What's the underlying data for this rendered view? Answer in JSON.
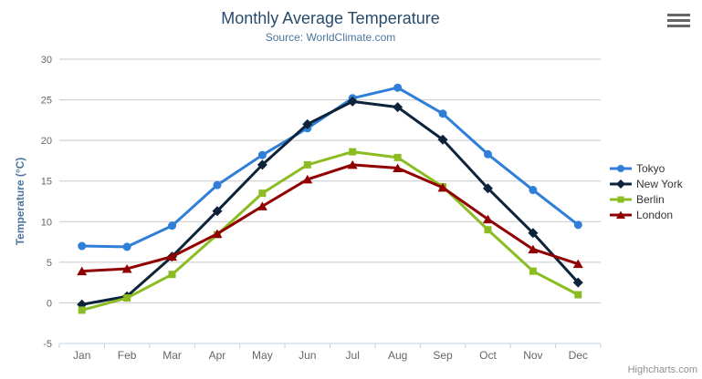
{
  "chart_data": {
    "type": "line",
    "title": "Monthly Average Temperature",
    "subtitle": "Source: WorldClimate.com",
    "credits": "Highcharts.com",
    "categories": [
      "Jan",
      "Feb",
      "Mar",
      "Apr",
      "May",
      "Jun",
      "Jul",
      "Aug",
      "Sep",
      "Oct",
      "Nov",
      "Dec"
    ],
    "xlabel": "",
    "ylabel": "Temperature (°C)",
    "ylim": [
      -5,
      30
    ],
    "yticks": [
      -5,
      0,
      5,
      10,
      15,
      20,
      25,
      30
    ],
    "grid": true,
    "legend_position": "right",
    "series": [
      {
        "name": "Tokyo",
        "color": "#2f7ed8",
        "marker": "circle",
        "values": [
          7.0,
          6.9,
          9.5,
          14.5,
          18.2,
          21.5,
          25.2,
          26.5,
          23.3,
          18.3,
          13.9,
          9.6
        ]
      },
      {
        "name": "New York",
        "color": "#0d233a",
        "marker": "diamond",
        "values": [
          -0.2,
          0.8,
          5.7,
          11.3,
          17.0,
          22.0,
          24.8,
          24.1,
          20.1,
          14.1,
          8.6,
          2.5
        ]
      },
      {
        "name": "Berlin",
        "color": "#8bbc21",
        "marker": "square",
        "values": [
          -0.9,
          0.6,
          3.5,
          8.4,
          13.5,
          17.0,
          18.6,
          17.9,
          14.3,
          9.0,
          3.9,
          1.0
        ]
      },
      {
        "name": "London",
        "color": "#910000",
        "marker": "triangle",
        "values": [
          3.9,
          4.2,
          5.7,
          8.5,
          11.9,
          15.2,
          17.0,
          16.6,
          14.2,
          10.3,
          6.6,
          4.8
        ]
      }
    ],
    "colors": {
      "title": "#274b6d",
      "subtitle": "#4d759e",
      "axis_labels": "#666666",
      "axis_title": "#4d759e",
      "gridline": "#c8c8c8",
      "axis_line": "#c0d0e0",
      "legend_text": "#333333",
      "credits": "#909090",
      "background": "#ffffff"
    }
  }
}
